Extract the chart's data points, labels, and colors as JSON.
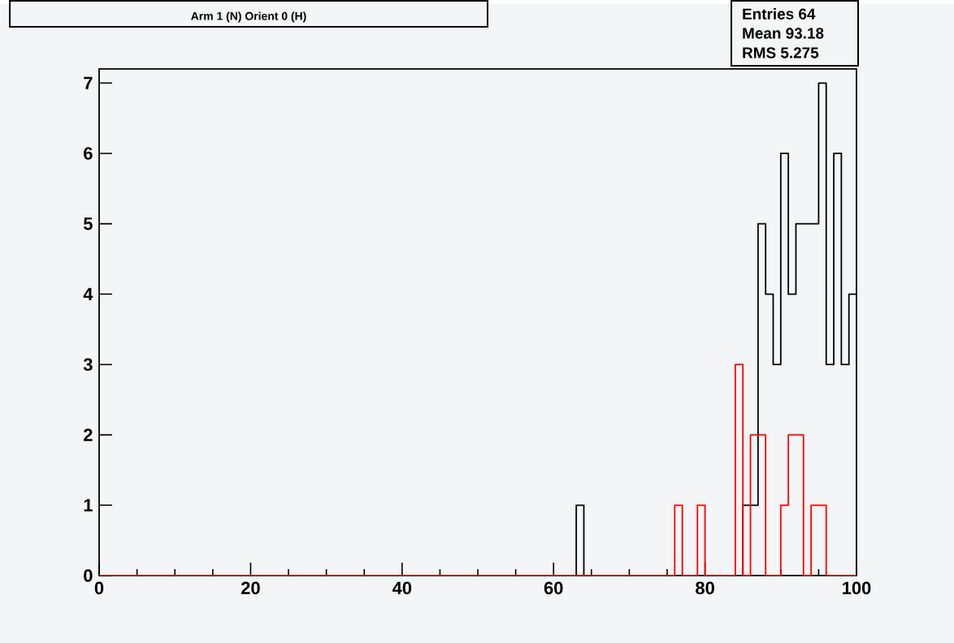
{
  "chart_data": {
    "type": "histogram",
    "title": "Arm 1 (N) Orient 0 (H)",
    "annotations": [
      "Entries 64",
      "Mean 93.18",
      "RMS 5.275"
    ],
    "bins": [
      0,
      1,
      2,
      3,
      4,
      5,
      6,
      7,
      8,
      9,
      10,
      11,
      12,
      13,
      14,
      15,
      16,
      17,
      18,
      19,
      20,
      21,
      22,
      23,
      24,
      25,
      26,
      27,
      28,
      29,
      30,
      31,
      32,
      33,
      34,
      35,
      36,
      37,
      38,
      39,
      40,
      41,
      42,
      43,
      44,
      45,
      46,
      47,
      48,
      49,
      50,
      51,
      52,
      53,
      54,
      55,
      56,
      57,
      58,
      59,
      60,
      61,
      62,
      63,
      64,
      65,
      66,
      67,
      68,
      69,
      70,
      71,
      72,
      73,
      74,
      75,
      76,
      77,
      78,
      79,
      80,
      81,
      82,
      83,
      84,
      85,
      86,
      87,
      88,
      89,
      90,
      91,
      92,
      93,
      94,
      95,
      96,
      97,
      98,
      99,
      100
    ],
    "series": [
      {
        "color": "#000000",
        "values": [
          0,
          0,
          0,
          0,
          0,
          0,
          0,
          0,
          0,
          0,
          0,
          0,
          0,
          0,
          0,
          0,
          0,
          0,
          0,
          0,
          0,
          0,
          0,
          0,
          0,
          0,
          0,
          0,
          0,
          0,
          0,
          0,
          0,
          0,
          0,
          0,
          0,
          0,
          0,
          0,
          0,
          0,
          0,
          0,
          0,
          0,
          0,
          0,
          0,
          0,
          0,
          0,
          0,
          0,
          0,
          0,
          0,
          0,
          0,
          0,
          0,
          0,
          0,
          1,
          0,
          0,
          0,
          0,
          0,
          0,
          0,
          0,
          0,
          0,
          0,
          0,
          0,
          0,
          0,
          0,
          0,
          0,
          0,
          0,
          0,
          1,
          1,
          5,
          4,
          3,
          6,
          4,
          5,
          5,
          5,
          7,
          3,
          6,
          3,
          4
        ]
      },
      {
        "color": "#ff0000",
        "values": [
          0,
          0,
          0,
          0,
          0,
          0,
          0,
          0,
          0,
          0,
          0,
          0,
          0,
          0,
          0,
          0,
          0,
          0,
          0,
          0,
          0,
          0,
          0,
          0,
          0,
          0,
          0,
          0,
          0,
          0,
          0,
          0,
          0,
          0,
          0,
          0,
          0,
          0,
          0,
          0,
          0,
          0,
          0,
          0,
          0,
          0,
          0,
          0,
          0,
          0,
          0,
          0,
          0,
          0,
          0,
          0,
          0,
          0,
          0,
          0,
          0,
          0,
          0,
          0,
          0,
          0,
          0,
          0,
          0,
          0,
          0,
          0,
          0,
          0,
          0,
          0,
          1,
          0,
          0,
          1,
          0,
          0,
          0,
          0,
          3,
          0,
          2,
          2,
          0,
          0,
          1,
          2,
          2,
          0,
          1,
          1,
          0,
          0,
          0,
          0
        ]
      }
    ],
    "xlim": [
      0,
      100
    ],
    "xticks": [
      0,
      20,
      40,
      60,
      80,
      100
    ],
    "ylim": [
      0,
      7.2
    ],
    "yticks": [
      0,
      1,
      2,
      3,
      4,
      5,
      6,
      7
    ]
  }
}
